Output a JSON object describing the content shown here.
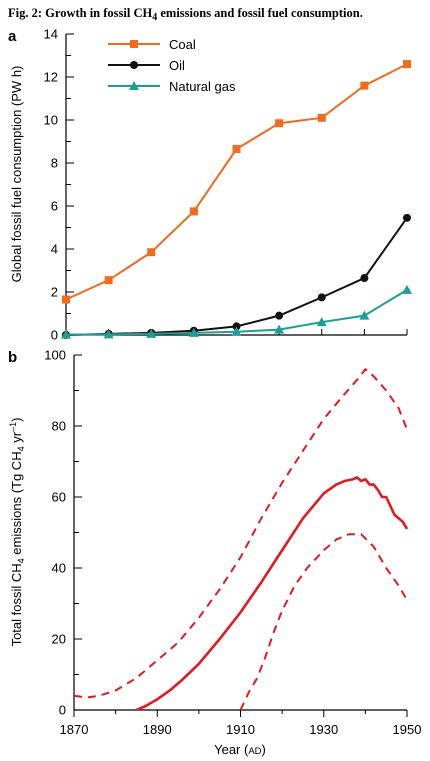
{
  "figure": {
    "title_pre": "Fig. 2: Growth in fossil CH",
    "title_sub": "4",
    "title_post": " emissions and fossil fuel consumption."
  },
  "chart_data": [
    {
      "panel_label": "a",
      "type": "line",
      "ylabel": "Global fossil fuel consumption (PW h)",
      "ylim": [
        0,
        14
      ],
      "y_ticks": [
        "0",
        "2",
        "4",
        "6",
        "8",
        "10",
        "12",
        "14"
      ],
      "y_minor_step": 1,
      "x_ticks": [
        1870,
        1880,
        1890,
        1900,
        1910,
        1920,
        1930,
        1940,
        1950
      ],
      "xlim": [
        1870,
        1950
      ],
      "grid": false,
      "legend": "top-left",
      "series": [
        {
          "name": "Coal",
          "color": "#f26a1b",
          "marker": "square",
          "x": [
            1870,
            1880,
            1890,
            1900,
            1910,
            1920,
            1930,
            1940,
            1950
          ],
          "values": [
            1.65,
            2.55,
            3.85,
            5.75,
            8.65,
            9.85,
            10.1,
            11.6,
            12.6
          ]
        },
        {
          "name": "Oil",
          "color": "#111111",
          "marker": "circle",
          "x": [
            1870,
            1880,
            1890,
            1900,
            1910,
            1920,
            1930,
            1940,
            1950
          ],
          "values": [
            0.0,
            0.05,
            0.1,
            0.2,
            0.4,
            0.9,
            1.75,
            2.65,
            5.45
          ]
        },
        {
          "name": "Natural gas",
          "color": "#1d9e96",
          "marker": "triangle",
          "x": [
            1870,
            1880,
            1890,
            1900,
            1910,
            1920,
            1930,
            1940,
            1950
          ],
          "values": [
            0.02,
            0.03,
            0.05,
            0.1,
            0.15,
            0.25,
            0.6,
            0.9,
            2.1
          ]
        }
      ]
    },
    {
      "panel_label": "b",
      "type": "line",
      "ylabel_pre": "Total fossil CH",
      "ylabel_sub": "4",
      "ylabel_mid": " emissions (Tg CH",
      "ylabel_sub2": "4",
      "ylabel_mid2": " yr",
      "ylabel_sup": "–1",
      "ylabel_post": ")",
      "xlabel_pre": "Year (",
      "xlabel_sc": "AD",
      "xlabel_post": ")",
      "ylim": [
        0,
        100
      ],
      "xlim": [
        1870,
        1950
      ],
      "y_ticks": [
        "0",
        "20",
        "40",
        "60",
        "80",
        "100"
      ],
      "y_minor_step": 10,
      "x_ticks": [
        "1870",
        "1890",
        "1910",
        "1930",
        "1950"
      ],
      "x_minor_step": 10,
      "grid": false,
      "color": "#e3191f",
      "series": [
        {
          "style": "dashed",
          "x": [
            1870,
            1873,
            1876,
            1880,
            1885,
            1890,
            1895,
            1900,
            1905,
            1910,
            1915,
            1920,
            1925,
            1930,
            1935,
            1938,
            1940,
            1942,
            1945,
            1948,
            1950
          ],
          "values": [
            4,
            3.5,
            4,
            5.5,
            9,
            14,
            19,
            26,
            34,
            43,
            54,
            64,
            73,
            82,
            89,
            93,
            96,
            94,
            90,
            85,
            79
          ]
        },
        {
          "style": "solid",
          "x": [
            1885,
            1887,
            1890,
            1893,
            1896,
            1900,
            1905,
            1910,
            1915,
            1920,
            1925,
            1930,
            1933,
            1935,
            1937,
            1938,
            1939,
            1940,
            1941,
            1942,
            1943,
            1944,
            1945,
            1946,
            1947,
            1948,
            1949,
            1950
          ],
          "values": [
            0,
            1,
            3,
            5.5,
            8.5,
            13,
            20,
            27.5,
            36,
            45,
            54,
            61,
            63.5,
            64.5,
            65,
            65.5,
            64.5,
            65,
            63.5,
            63.5,
            62,
            60,
            60,
            57.5,
            55,
            54,
            53,
            51
          ]
        },
        {
          "style": "dashed",
          "x": [
            1910,
            1912,
            1914,
            1916,
            1918,
            1920,
            1923,
            1926,
            1930,
            1933,
            1936,
            1939,
            1942,
            1945,
            1948,
            1950
          ],
          "values": [
            0,
            5,
            9,
            15,
            22,
            28,
            35,
            40,
            45,
            48,
            49.5,
            49.5,
            46,
            40,
            35,
            31
          ]
        }
      ]
    }
  ]
}
